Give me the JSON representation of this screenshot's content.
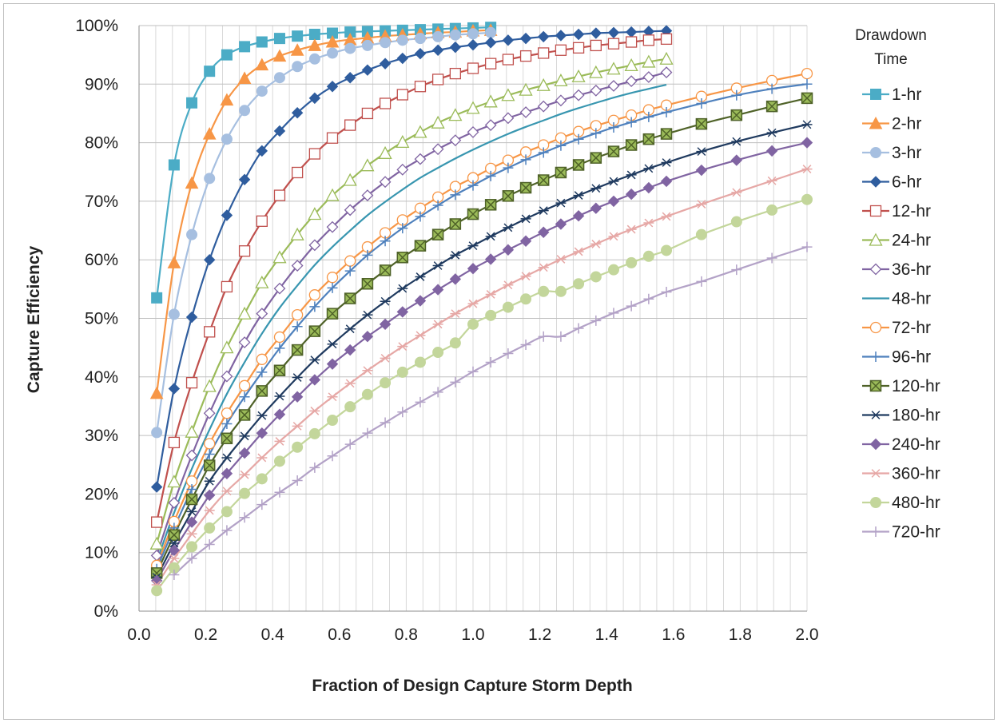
{
  "chart_data": {
    "type": "line",
    "xlabel": "Fraction of Design Capture Storm Depth",
    "ylabel": "Capture Efficiency",
    "legend_title": "Drawdown Time",
    "legend_position": "right",
    "grid": true,
    "xlim": [
      0,
      2
    ],
    "ylim": [
      0,
      1
    ],
    "x_ticks": [
      "0.0",
      "0.2",
      "0.4",
      "0.6",
      "0.8",
      "1.0",
      "1.2",
      "1.4",
      "1.6",
      "1.8",
      "2.0"
    ],
    "y_ticks": [
      "0%",
      "10%",
      "20%",
      "30%",
      "40%",
      "50%",
      "60%",
      "70%",
      "80%",
      "90%",
      "100%"
    ],
    "series": [
      {
        "name": "1-hr",
        "color": "#4bacc6",
        "marker": "square-filled",
        "x": [
          0.053,
          0.105,
          0.158,
          0.211,
          0.263,
          0.316,
          0.368,
          0.421,
          0.474,
          0.526,
          0.579,
          0.632,
          0.684,
          0.737,
          0.789,
          0.842,
          0.895,
          0.947,
          1.0,
          1.053
        ],
        "y": [
          0.535,
          0.762,
          0.868,
          0.922,
          0.95,
          0.964,
          0.972,
          0.978,
          0.982,
          0.985,
          0.987,
          0.989,
          0.99,
          0.991,
          0.992,
          0.993,
          0.994,
          0.995,
          0.996,
          0.997
        ]
      },
      {
        "name": "2-hr",
        "color": "#f79646",
        "marker": "triangle-filled",
        "x": [
          0.053,
          0.105,
          0.158,
          0.211,
          0.263,
          0.316,
          0.368,
          0.421,
          0.474,
          0.526,
          0.579,
          0.632,
          0.684,
          0.737,
          0.789,
          0.842,
          0.895,
          0.947,
          1.0,
          1.053
        ],
        "y": [
          0.372,
          0.595,
          0.731,
          0.815,
          0.873,
          0.91,
          0.933,
          0.948,
          0.958,
          0.966,
          0.972,
          0.976,
          0.979,
          0.982,
          0.984,
          0.986,
          0.988,
          0.989,
          0.991,
          0.992
        ]
      },
      {
        "name": "3-hr",
        "color": "#a6bfe0",
        "marker": "circle-filled",
        "x": [
          0.053,
          0.105,
          0.158,
          0.211,
          0.263,
          0.316,
          0.368,
          0.421,
          0.474,
          0.526,
          0.579,
          0.632,
          0.684,
          0.737,
          0.789,
          0.842,
          0.895,
          0.947,
          1.0,
          1.053
        ],
        "y": [
          0.305,
          0.507,
          0.643,
          0.739,
          0.806,
          0.855,
          0.888,
          0.911,
          0.93,
          0.943,
          0.953,
          0.961,
          0.966,
          0.971,
          0.975,
          0.978,
          0.981,
          0.984,
          0.986,
          0.988
        ]
      },
      {
        "name": "6-hr",
        "color": "#2f5d9e",
        "marker": "diamond-filled",
        "x": [
          0.053,
          0.105,
          0.158,
          0.211,
          0.263,
          0.316,
          0.368,
          0.421,
          0.474,
          0.526,
          0.579,
          0.632,
          0.684,
          0.737,
          0.789,
          0.842,
          0.895,
          0.947,
          1.0,
          1.053,
          1.105,
          1.158,
          1.211,
          1.263,
          1.316,
          1.368,
          1.421,
          1.474,
          1.526,
          1.579
        ],
        "y": [
          0.212,
          0.38,
          0.502,
          0.6,
          0.676,
          0.737,
          0.786,
          0.82,
          0.851,
          0.876,
          0.896,
          0.911,
          0.924,
          0.935,
          0.944,
          0.952,
          0.958,
          0.963,
          0.967,
          0.971,
          0.975,
          0.978,
          0.981,
          0.983,
          0.985,
          0.987,
          0.988,
          0.989,
          0.99,
          0.991
        ]
      },
      {
        "name": "12-hr",
        "color": "#c0504d",
        "marker": "square-open",
        "x": [
          0.053,
          0.105,
          0.158,
          0.211,
          0.263,
          0.316,
          0.368,
          0.421,
          0.474,
          0.526,
          0.579,
          0.632,
          0.684,
          0.737,
          0.789,
          0.842,
          0.895,
          0.947,
          1.0,
          1.053,
          1.105,
          1.158,
          1.211,
          1.263,
          1.316,
          1.368,
          1.421,
          1.474,
          1.526,
          1.579
        ],
        "y": [
          0.152,
          0.288,
          0.39,
          0.477,
          0.554,
          0.615,
          0.666,
          0.71,
          0.749,
          0.781,
          0.808,
          0.83,
          0.85,
          0.867,
          0.882,
          0.896,
          0.908,
          0.918,
          0.927,
          0.935,
          0.942,
          0.948,
          0.953,
          0.958,
          0.962,
          0.966,
          0.969,
          0.972,
          0.975,
          0.977
        ]
      },
      {
        "name": "24-hr",
        "color": "#9bbb59",
        "marker": "triangle-open",
        "x": [
          0.053,
          0.105,
          0.158,
          0.211,
          0.263,
          0.316,
          0.368,
          0.421,
          0.474,
          0.526,
          0.579,
          0.632,
          0.684,
          0.737,
          0.789,
          0.842,
          0.895,
          0.947,
          1.0,
          1.053,
          1.105,
          1.158,
          1.211,
          1.263,
          1.316,
          1.368,
          1.421,
          1.474,
          1.526,
          1.579
        ],
        "y": [
          0.115,
          0.221,
          0.306,
          0.384,
          0.45,
          0.508,
          0.561,
          0.604,
          0.643,
          0.678,
          0.71,
          0.736,
          0.761,
          0.782,
          0.801,
          0.818,
          0.834,
          0.847,
          0.859,
          0.87,
          0.881,
          0.89,
          0.898,
          0.906,
          0.913,
          0.92,
          0.926,
          0.932,
          0.938,
          0.943
        ]
      },
      {
        "name": "36-hr",
        "color": "#8064a2",
        "marker": "diamond-open",
        "x": [
          0.053,
          0.105,
          0.158,
          0.211,
          0.263,
          0.316,
          0.368,
          0.421,
          0.474,
          0.526,
          0.579,
          0.632,
          0.684,
          0.737,
          0.789,
          0.842,
          0.895,
          0.947,
          1.0,
          1.053,
          1.105,
          1.158,
          1.211,
          1.263,
          1.316,
          1.368,
          1.421,
          1.474,
          1.526,
          1.579
        ],
        "y": [
          0.095,
          0.185,
          0.266,
          0.338,
          0.401,
          0.459,
          0.508,
          0.551,
          0.59,
          0.625,
          0.656,
          0.685,
          0.71,
          0.733,
          0.754,
          0.772,
          0.789,
          0.804,
          0.818,
          0.83,
          0.842,
          0.852,
          0.862,
          0.872,
          0.881,
          0.889,
          0.897,
          0.905,
          0.912,
          0.92
        ]
      },
      {
        "name": "48-hr",
        "color": "#3896b0",
        "marker": "none",
        "x": [
          0.053,
          0.105,
          0.158,
          0.211,
          0.263,
          0.316,
          0.368,
          0.421,
          0.474,
          0.526,
          0.579,
          0.632,
          0.684,
          0.737,
          0.789,
          0.842,
          0.895,
          0.947,
          1.0,
          1.053,
          1.105,
          1.158,
          1.211,
          1.263,
          1.316,
          1.368,
          1.421,
          1.474,
          1.526,
          1.579
        ],
        "y": [
          0.085,
          0.168,
          0.243,
          0.31,
          0.371,
          0.425,
          0.474,
          0.518,
          0.556,
          0.591,
          0.622,
          0.65,
          0.676,
          0.699,
          0.72,
          0.74,
          0.757,
          0.773,
          0.788,
          0.802,
          0.815,
          0.827,
          0.838,
          0.849,
          0.859,
          0.868,
          0.877,
          0.885,
          0.892,
          0.899
        ]
      },
      {
        "name": "72-hr",
        "color": "#f79646",
        "marker": "circle-open",
        "x": [
          0.053,
          0.105,
          0.158,
          0.211,
          0.263,
          0.316,
          0.368,
          0.421,
          0.474,
          0.526,
          0.579,
          0.632,
          0.684,
          0.737,
          0.789,
          0.842,
          0.895,
          0.947,
          1.0,
          1.053,
          1.105,
          1.158,
          1.211,
          1.263,
          1.316,
          1.368,
          1.421,
          1.474,
          1.526,
          1.579,
          1.684,
          1.789,
          1.895,
          2.0
        ],
        "y": [
          0.078,
          0.153,
          0.222,
          0.286,
          0.338,
          0.385,
          0.43,
          0.468,
          0.506,
          0.54,
          0.57,
          0.598,
          0.622,
          0.646,
          0.668,
          0.688,
          0.707,
          0.725,
          0.74,
          0.756,
          0.77,
          0.784,
          0.796,
          0.808,
          0.819,
          0.829,
          0.838,
          0.847,
          0.856,
          0.864,
          0.879,
          0.893,
          0.906,
          0.918
        ]
      },
      {
        "name": "96-hr",
        "color": "#4f81bd",
        "marker": "plus",
        "x": [
          0.053,
          0.105,
          0.158,
          0.211,
          0.263,
          0.316,
          0.368,
          0.421,
          0.474,
          0.526,
          0.579,
          0.632,
          0.684,
          0.737,
          0.789,
          0.842,
          0.895,
          0.947,
          1.0,
          1.053,
          1.105,
          1.158,
          1.211,
          1.263,
          1.316,
          1.368,
          1.421,
          1.474,
          1.526,
          1.579,
          1.684,
          1.789,
          1.895,
          2.0
        ],
        "y": [
          0.072,
          0.142,
          0.208,
          0.268,
          0.32,
          0.366,
          0.408,
          0.449,
          0.486,
          0.52,
          0.552,
          0.581,
          0.608,
          0.632,
          0.654,
          0.674,
          0.693,
          0.711,
          0.727,
          0.743,
          0.757,
          0.771,
          0.783,
          0.795,
          0.806,
          0.816,
          0.826,
          0.835,
          0.844,
          0.852,
          0.867,
          0.881,
          0.892,
          0.9
        ]
      },
      {
        "name": "120-hr",
        "color": "#4f6228",
        "marker": "square-x",
        "fill": "#9bbb59",
        "x": [
          0.053,
          0.105,
          0.158,
          0.211,
          0.263,
          0.316,
          0.368,
          0.421,
          0.474,
          0.526,
          0.579,
          0.632,
          0.684,
          0.737,
          0.789,
          0.842,
          0.895,
          0.947,
          1.0,
          1.053,
          1.105,
          1.158,
          1.211,
          1.263,
          1.316,
          1.368,
          1.421,
          1.474,
          1.526,
          1.579,
          1.684,
          1.789,
          1.895,
          2.0
        ],
        "y": [
          0.065,
          0.13,
          0.191,
          0.249,
          0.295,
          0.335,
          0.376,
          0.411,
          0.446,
          0.478,
          0.508,
          0.534,
          0.559,
          0.582,
          0.604,
          0.624,
          0.643,
          0.661,
          0.678,
          0.694,
          0.709,
          0.723,
          0.736,
          0.749,
          0.762,
          0.774,
          0.785,
          0.796,
          0.806,
          0.815,
          0.832,
          0.847,
          0.862,
          0.876
        ]
      },
      {
        "name": "180-hr",
        "color": "#1f3a5f",
        "marker": "star",
        "x": [
          0.053,
          0.105,
          0.158,
          0.211,
          0.263,
          0.316,
          0.368,
          0.421,
          0.474,
          0.526,
          0.579,
          0.632,
          0.684,
          0.737,
          0.789,
          0.842,
          0.895,
          0.947,
          1.0,
          1.053,
          1.105,
          1.158,
          1.211,
          1.263,
          1.316,
          1.368,
          1.421,
          1.474,
          1.526,
          1.579,
          1.684,
          1.789,
          1.895,
          2.0
        ],
        "y": [
          0.058,
          0.116,
          0.17,
          0.222,
          0.262,
          0.299,
          0.334,
          0.367,
          0.399,
          0.429,
          0.456,
          0.482,
          0.506,
          0.529,
          0.551,
          0.571,
          0.59,
          0.608,
          0.624,
          0.64,
          0.655,
          0.67,
          0.684,
          0.697,
          0.71,
          0.722,
          0.734,
          0.745,
          0.756,
          0.766,
          0.785,
          0.802,
          0.817,
          0.831
        ]
      },
      {
        "name": "240-hr",
        "color": "#8064a2",
        "marker": "diamond-filled",
        "x": [
          0.053,
          0.105,
          0.158,
          0.211,
          0.263,
          0.316,
          0.368,
          0.421,
          0.474,
          0.526,
          0.579,
          0.632,
          0.684,
          0.737,
          0.789,
          0.842,
          0.895,
          0.947,
          1.0,
          1.053,
          1.105,
          1.158,
          1.211,
          1.263,
          1.316,
          1.368,
          1.421,
          1.474,
          1.526,
          1.579,
          1.684,
          1.789,
          1.895,
          2.0
        ],
        "y": [
          0.052,
          0.104,
          0.152,
          0.198,
          0.235,
          0.27,
          0.304,
          0.336,
          0.366,
          0.395,
          0.422,
          0.446,
          0.469,
          0.49,
          0.511,
          0.53,
          0.549,
          0.567,
          0.585,
          0.601,
          0.617,
          0.632,
          0.647,
          0.661,
          0.675,
          0.688,
          0.7,
          0.712,
          0.723,
          0.734,
          0.753,
          0.77,
          0.786,
          0.8
        ]
      },
      {
        "name": "360-hr",
        "color": "#e6a8a6",
        "marker": "star",
        "x": [
          0.053,
          0.105,
          0.158,
          0.211,
          0.263,
          0.316,
          0.368,
          0.421,
          0.474,
          0.526,
          0.579,
          0.632,
          0.684,
          0.737,
          0.789,
          0.842,
          0.895,
          0.947,
          1.0,
          1.053,
          1.105,
          1.158,
          1.211,
          1.263,
          1.316,
          1.368,
          1.421,
          1.474,
          1.526,
          1.579,
          1.684,
          1.789,
          1.895,
          2.0
        ],
        "y": [
          0.045,
          0.09,
          0.132,
          0.172,
          0.205,
          0.233,
          0.262,
          0.29,
          0.316,
          0.342,
          0.366,
          0.389,
          0.411,
          0.432,
          0.452,
          0.471,
          0.49,
          0.508,
          0.525,
          0.541,
          0.557,
          0.572,
          0.587,
          0.601,
          0.614,
          0.627,
          0.64,
          0.652,
          0.663,
          0.674,
          0.695,
          0.715,
          0.735,
          0.755
        ]
      },
      {
        "name": "480-hr",
        "color": "#c3d69b",
        "marker": "circle-filled",
        "x": [
          0.053,
          0.105,
          0.158,
          0.211,
          0.263,
          0.316,
          0.368,
          0.421,
          0.474,
          0.526,
          0.579,
          0.632,
          0.684,
          0.737,
          0.789,
          0.842,
          0.895,
          0.947,
          1.0,
          1.053,
          1.105,
          1.158,
          1.211,
          1.263,
          1.316,
          1.368,
          1.421,
          1.474,
          1.526,
          1.579,
          1.684,
          1.789,
          1.895,
          2.0
        ],
        "y": [
          0.035,
          0.074,
          0.11,
          0.142,
          0.17,
          0.201,
          0.226,
          0.256,
          0.28,
          0.303,
          0.326,
          0.349,
          0.37,
          0.39,
          0.408,
          0.425,
          0.442,
          0.458,
          0.49,
          0.505,
          0.519,
          0.533,
          0.546,
          0.546,
          0.559,
          0.571,
          0.583,
          0.595,
          0.606,
          0.616,
          0.643,
          0.665,
          0.685,
          0.703
        ]
      },
      {
        "name": "720-hr",
        "color": "#b3a2c7",
        "marker": "plus",
        "x": [
          0.105,
          0.158,
          0.211,
          0.263,
          0.316,
          0.368,
          0.421,
          0.474,
          0.526,
          0.579,
          0.632,
          0.684,
          0.737,
          0.789,
          0.842,
          0.895,
          0.947,
          1.0,
          1.053,
          1.105,
          1.158,
          1.211,
          1.263,
          1.316,
          1.368,
          1.421,
          1.474,
          1.526,
          1.579,
          1.684,
          1.789,
          1.895,
          2.0
        ],
        "y": [
          0.062,
          0.09,
          0.114,
          0.138,
          0.16,
          0.182,
          0.203,
          0.223,
          0.245,
          0.265,
          0.285,
          0.304,
          0.322,
          0.34,
          0.357,
          0.374,
          0.391,
          0.409,
          0.425,
          0.44,
          0.455,
          0.469,
          0.469,
          0.483,
          0.496,
          0.509,
          0.521,
          0.533,
          0.545,
          0.563,
          0.583,
          0.603,
          0.622
        ]
      }
    ]
  }
}
